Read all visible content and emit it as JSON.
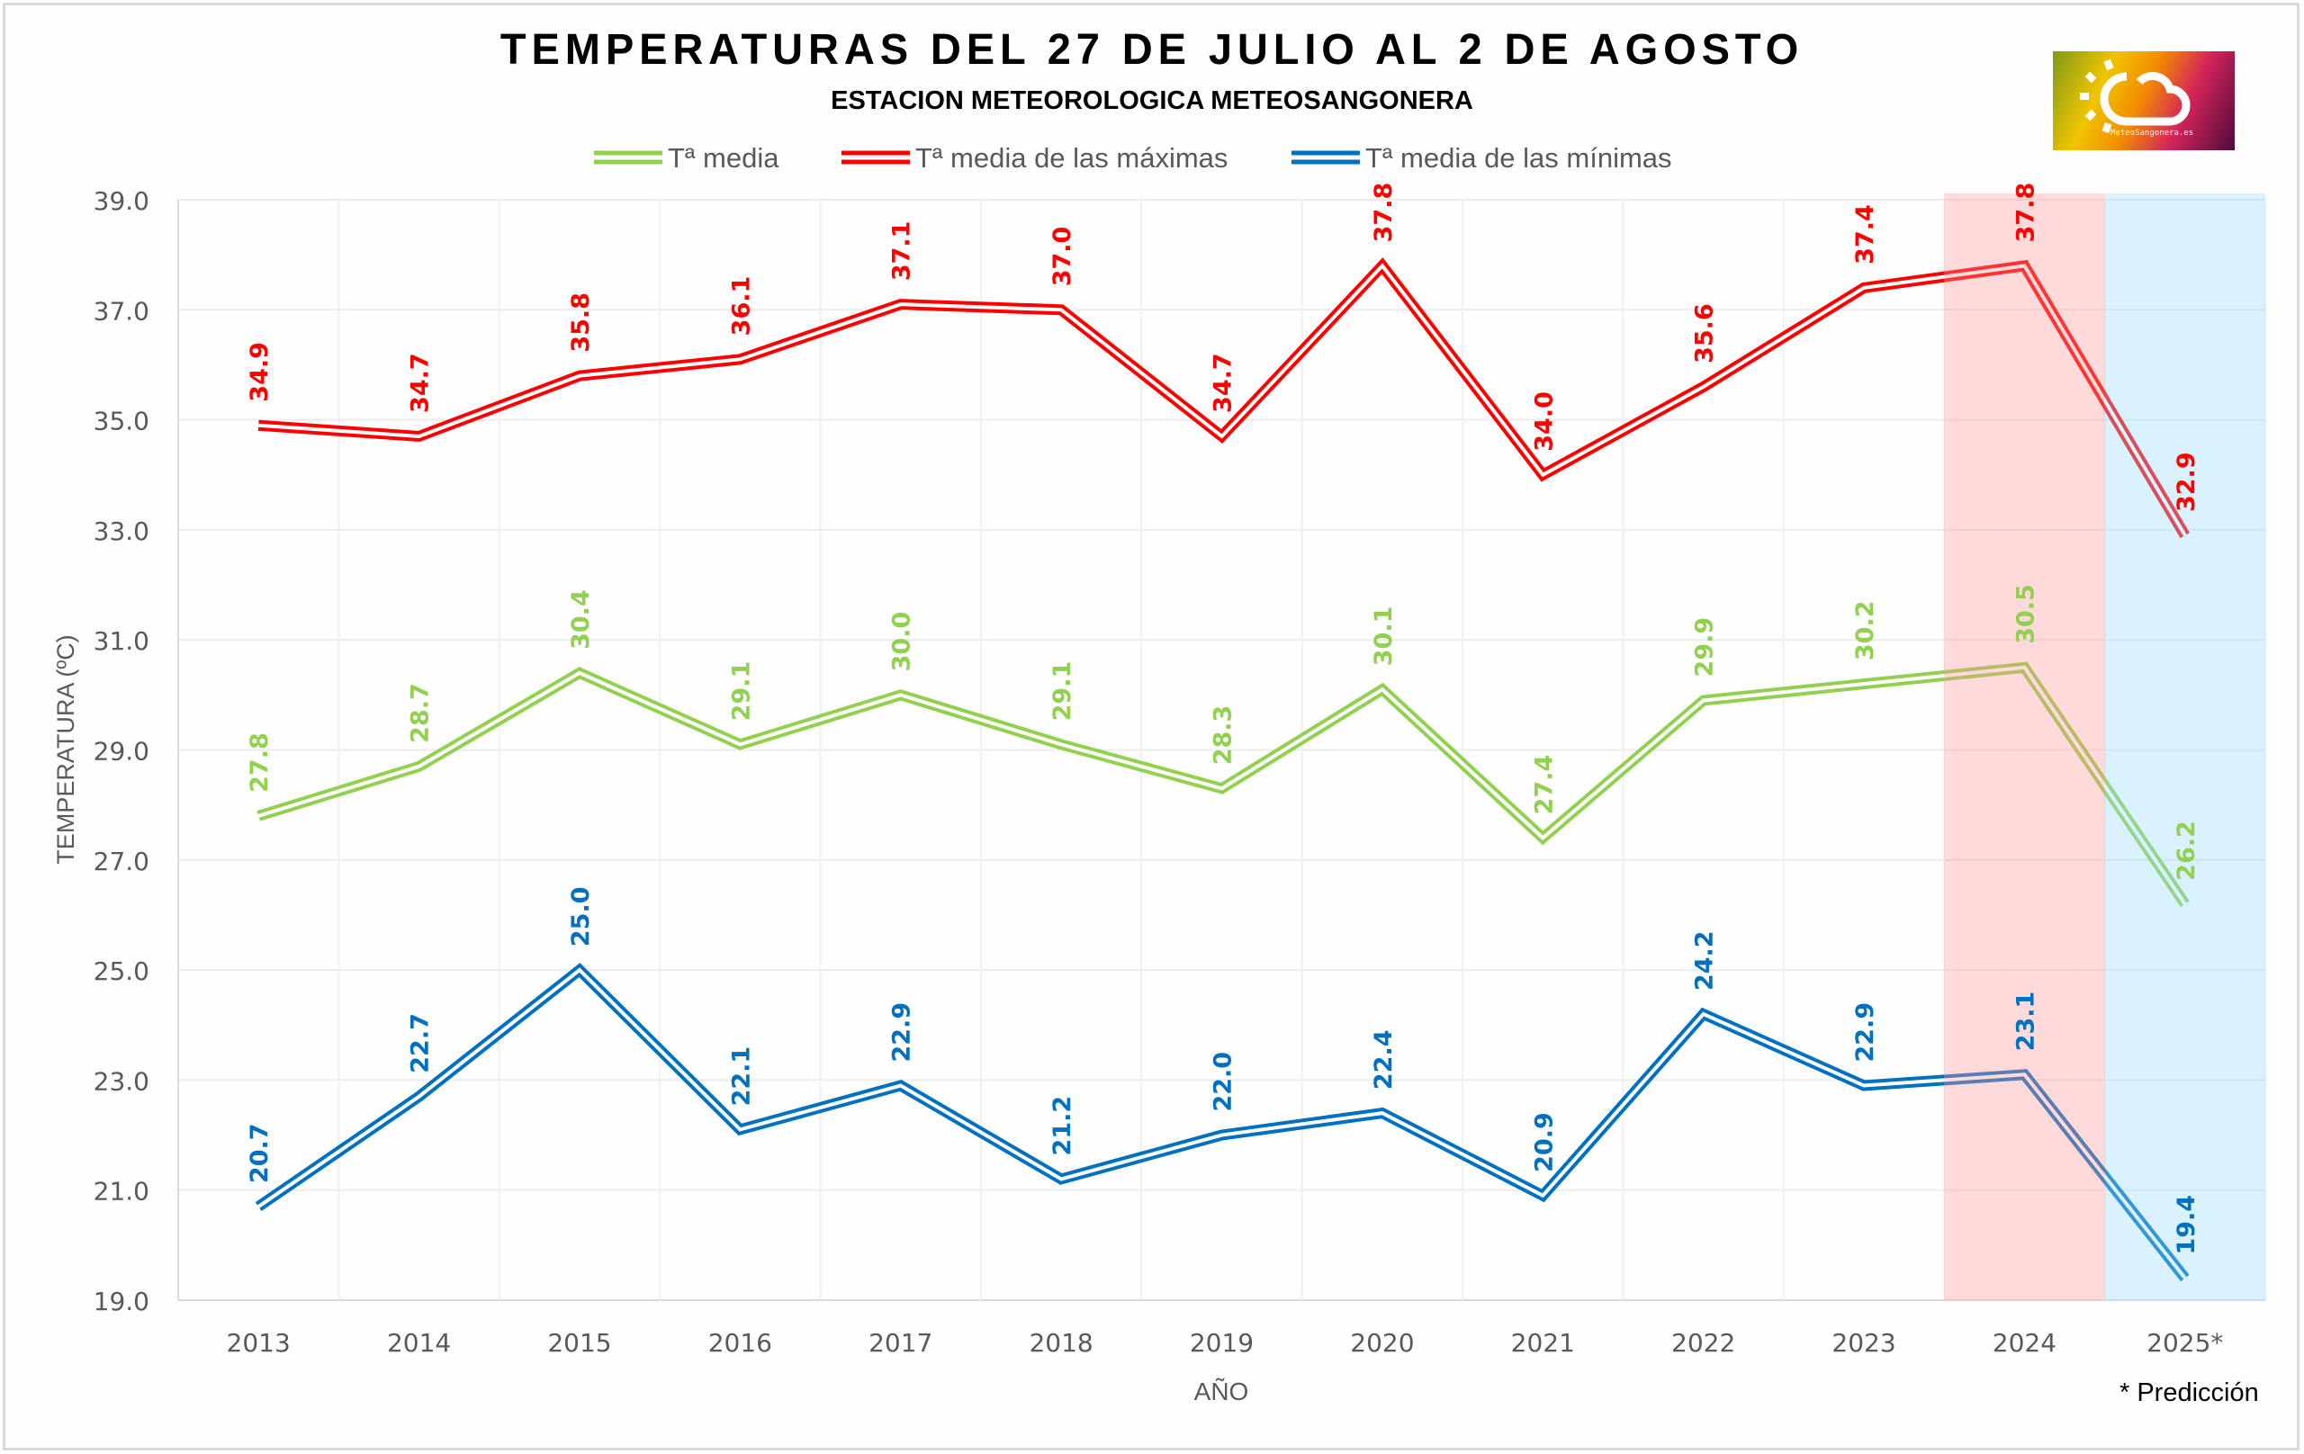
{
  "chart_data": {
    "type": "line",
    "title": "TEMPERATURAS DEL 27 DE JULIO AL 2 DE AGOSTO",
    "subtitle": "ESTACION METEOROLOGICA METEOSANGONERA",
    "xlabel": "AÑO",
    "ylabel": "TEMPERATURA (ºC)",
    "ylim": [
      19.0,
      39.0
    ],
    "yticks": [
      "19.0",
      "21.0",
      "23.0",
      "25.0",
      "27.0",
      "29.0",
      "31.0",
      "33.0",
      "35.0",
      "37.0",
      "39.0"
    ],
    "categories": [
      "2013",
      "2014",
      "2015",
      "2016",
      "2017",
      "2018",
      "2019",
      "2020",
      "2021",
      "2022",
      "2023",
      "2024",
      "2025*"
    ],
    "grid": true,
    "legend_position": "top-center",
    "series": [
      {
        "name": "Tª media",
        "color": "#92d050",
        "values": [
          27.8,
          28.7,
          30.4,
          29.1,
          30.0,
          29.1,
          28.3,
          30.1,
          27.4,
          29.9,
          30.2,
          30.5,
          26.2
        ]
      },
      {
        "name": "Tª media de las máximas",
        "color": "#ff0000",
        "values": [
          34.9,
          34.7,
          35.8,
          36.1,
          37.1,
          37.0,
          34.7,
          37.8,
          34.0,
          35.6,
          37.4,
          37.8,
          32.9
        ]
      },
      {
        "name": "Tª media de las mínimas",
        "color": "#0070c0",
        "values": [
          20.7,
          22.7,
          25.0,
          22.1,
          22.9,
          21.2,
          22.0,
          22.4,
          20.9,
          24.2,
          22.9,
          23.1,
          19.4
        ]
      }
    ],
    "highlight_bands": [
      {
        "category": "2024",
        "color": "#ff9999"
      },
      {
        "category": "2025*",
        "color": "#99ddff"
      }
    ],
    "footnote": "* Predicción"
  },
  "logo": {
    "text": "MeteoSangonera.es"
  }
}
